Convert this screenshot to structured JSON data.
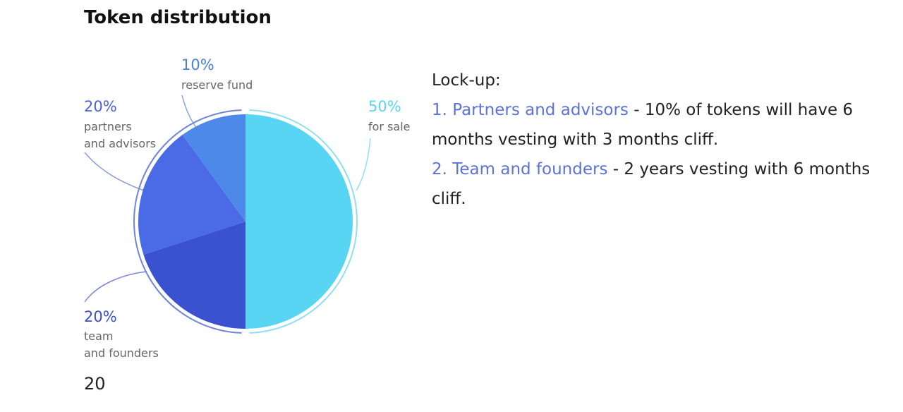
{
  "page": {
    "title": "Token distribution",
    "page_number": "20"
  },
  "chart_data": {
    "type": "pie",
    "title": "Token distribution",
    "slices": [
      {
        "pct": "50%",
        "label": "for sale",
        "value": 50,
        "color": "#58d5f2",
        "label_color": "#58d5f2"
      },
      {
        "pct": "20%",
        "label": "team and founders",
        "value": 20,
        "color": "#3a51d0",
        "label_color": "#3a4fc8"
      },
      {
        "pct": "20%",
        "label": "partners and advisors",
        "value": 20,
        "color": "#4b6be6",
        "label_color": "#4a62d6"
      },
      {
        "pct": "10%",
        "label": "reserve fund",
        "value": 10,
        "color": "#4d89e8",
        "label_color": "#4a7fd8"
      }
    ]
  },
  "lockup": {
    "heading": "Lock-up:",
    "item1_label": "1. Partners and advisors",
    "item1_text": " - 10% of tokens will have 6 months vesting with 3 months cliff.",
    "item2_label": "2. Team and founders",
    "item2_text": " - 2 years vesting with 6 months cliff."
  }
}
